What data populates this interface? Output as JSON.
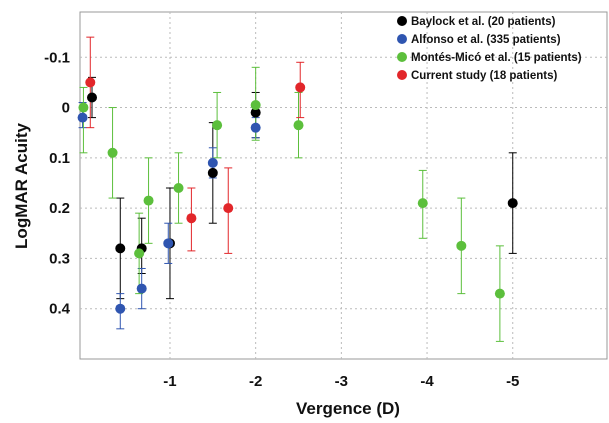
{
  "chart_data": {
    "type": "scatter",
    "xlabel": "Vergence (D)",
    "ylabel": "LogMAR Acuity",
    "xlim": [
      0.05,
      -6.1
    ],
    "ylim": [
      -0.19,
      0.5
    ],
    "y_inverted": true,
    "x_ticks": [
      -1,
      -2,
      -3,
      -4,
      -5
    ],
    "x_tick_labels": [
      "-1",
      "-2",
      "-3",
      "-4",
      "-5"
    ],
    "y_ticks": [
      -0.1,
      0,
      0.1,
      0.2,
      0.3,
      0.4
    ],
    "y_tick_labels": [
      "-0.1",
      "0",
      "0.1",
      "0.2",
      "0.3",
      "0.4"
    ],
    "grid": true,
    "legend_position": "top-right",
    "series": [
      {
        "name": "Baylock et al. (20 patients)",
        "color": "#000000",
        "points": [
          {
            "x": -0.09,
            "y": -0.02,
            "lo": -0.06,
            "hi": 0.02
          },
          {
            "x": -0.42,
            "y": 0.28,
            "lo": 0.18,
            "hi": 0.38
          },
          {
            "x": -0.67,
            "y": 0.28,
            "lo": 0.22,
            "hi": 0.33
          },
          {
            "x": -1.0,
            "y": 0.27,
            "lo": 0.16,
            "hi": 0.38
          },
          {
            "x": -1.5,
            "y": 0.13,
            "lo": 0.03,
            "hi": 0.23
          },
          {
            "x": -2.0,
            "y": 0.01,
            "lo": -0.03,
            "hi": 0.06
          },
          {
            "x": -5.0,
            "y": 0.19,
            "lo": 0.09,
            "hi": 0.29
          }
        ]
      },
      {
        "name": "Alfonso et al. (335 patients)",
        "color": "#2f55b0",
        "points": [
          {
            "x": 0.02,
            "y": 0.02,
            "lo": -0.01,
            "hi": 0.04
          },
          {
            "x": -0.42,
            "y": 0.4,
            "lo": 0.37,
            "hi": 0.44
          },
          {
            "x": -0.67,
            "y": 0.36,
            "lo": 0.32,
            "hi": 0.4
          },
          {
            "x": -0.98,
            "y": 0.27,
            "lo": 0.23,
            "hi": 0.31
          },
          {
            "x": -1.5,
            "y": 0.11,
            "lo": 0.08,
            "hi": 0.14
          },
          {
            "x": -2.0,
            "y": 0.04,
            "lo": 0.02,
            "hi": 0.06
          }
        ]
      },
      {
        "name": "Montés-Micó et al. (15 patients)",
        "color": "#5cbf3c",
        "points": [
          {
            "x": 0.01,
            "y": 0.0,
            "lo": -0.04,
            "hi": 0.09
          },
          {
            "x": -0.33,
            "y": 0.09,
            "lo": 0.0,
            "hi": 0.18
          },
          {
            "x": -0.75,
            "y": 0.185,
            "lo": 0.1,
            "hi": 0.27
          },
          {
            "x": -0.64,
            "y": 0.29,
            "lo": 0.21,
            "hi": 0.37
          },
          {
            "x": -1.1,
            "y": 0.16,
            "lo": 0.09,
            "hi": 0.23
          },
          {
            "x": -1.55,
            "y": 0.035,
            "lo": -0.03,
            "hi": 0.1
          },
          {
            "x": -2.0,
            "y": -0.005,
            "lo": -0.08,
            "hi": 0.065
          },
          {
            "x": -2.5,
            "y": 0.035,
            "lo": -0.03,
            "hi": 0.1
          },
          {
            "x": -3.95,
            "y": 0.19,
            "lo": 0.125,
            "hi": 0.26
          },
          {
            "x": -4.4,
            "y": 0.275,
            "lo": 0.18,
            "hi": 0.37
          },
          {
            "x": -4.85,
            "y": 0.37,
            "lo": 0.275,
            "hi": 0.465
          }
        ]
      },
      {
        "name": "Current study (18 patients)",
        "color": "#e2262a",
        "points": [
          {
            "x": -0.07,
            "y": -0.05,
            "lo": -0.14,
            "hi": 0.04
          },
          {
            "x": -1.25,
            "y": 0.22,
            "lo": 0.16,
            "hi": 0.285
          },
          {
            "x": -1.68,
            "y": 0.2,
            "lo": 0.12,
            "hi": 0.29
          },
          {
            "x": -2.52,
            "y": -0.04,
            "lo": -0.09,
            "hi": 0.02
          }
        ]
      }
    ]
  }
}
